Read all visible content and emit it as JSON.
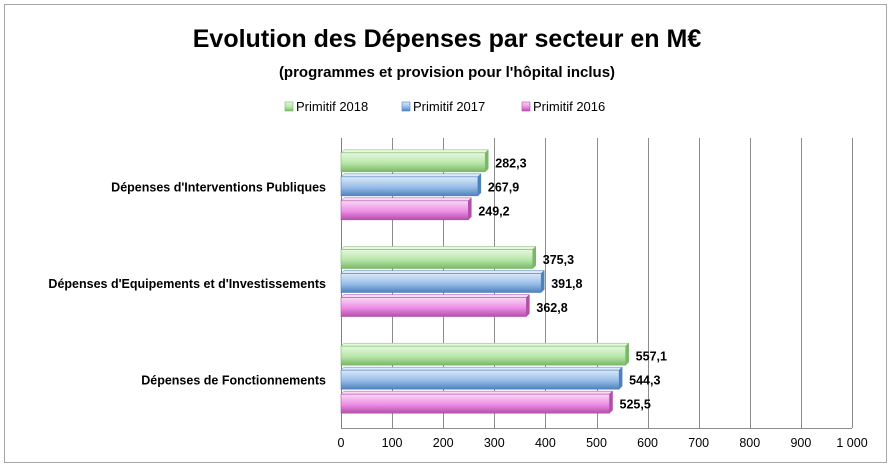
{
  "chart_data": {
    "type": "bar",
    "orientation": "horizontal",
    "title": "Evolution des Dépenses par secteur en M€",
    "subtitle": "(programmes et provision pour l'hôpital inclus)",
    "categories": [
      "Dépenses d'Interventions Publiques",
      "Dépenses d'Equipements et d'Investissements",
      "Dépenses de Fonctionnements"
    ],
    "series": [
      {
        "name": "Primitif 2018",
        "values": [
          282.3,
          375.3,
          557.1
        ],
        "labels": [
          "282,3",
          "375,3",
          "557,1"
        ]
      },
      {
        "name": "Primitif 2017",
        "values": [
          267.9,
          391.8,
          544.3
        ],
        "labels": [
          "267,9",
          "391,8",
          "544,3"
        ]
      },
      {
        "name": "Primitif 2016",
        "values": [
          249.2,
          362.8,
          525.5
        ],
        "labels": [
          "249,2",
          "362,8",
          "525,5"
        ]
      }
    ],
    "x_ticks": [
      "0",
      "100",
      "200",
      "300",
      "400",
      "500",
      "600",
      "700",
      "800",
      "900",
      "1 000"
    ],
    "xlim": [
      0,
      1000
    ],
    "grid": true,
    "legend_position": "top"
  },
  "colors": {
    "Primitif 2018": {
      "light": "#e6f7df",
      "main": "#b7e6a8",
      "dark": "#78b867"
    },
    "Primitif 2017": {
      "light": "#dbe9f8",
      "main": "#97bde8",
      "dark": "#4f81bd"
    },
    "Primitif 2016": {
      "light": "#f8d9f5",
      "main": "#ee8de6",
      "dark": "#b14fa9"
    }
  }
}
